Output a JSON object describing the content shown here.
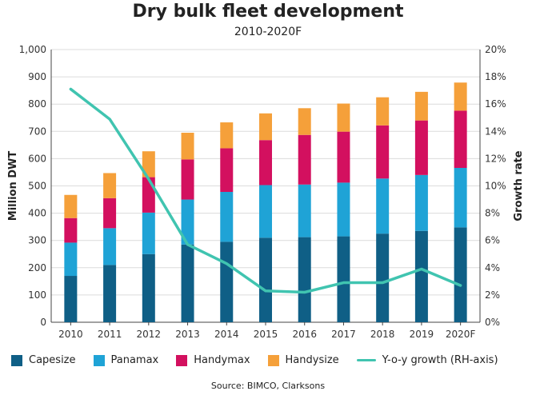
{
  "chart_data": {
    "type": "bar",
    "title": "Dry bulk fleet development",
    "subtitle": "2010-2020F",
    "ylabel": "Million DWT",
    "y2label": "Growth rate",
    "source": "Source: BIMCO, Clarksons",
    "stacked": true,
    "ylim": [
      0,
      1000
    ],
    "y2lim": [
      0,
      20
    ],
    "y_ticks": [
      "0",
      "100",
      "200",
      "300",
      "400",
      "500",
      "600",
      "700",
      "800",
      "900",
      "1,000"
    ],
    "y2_ticks": [
      "0%",
      "2%",
      "4%",
      "6%",
      "8%",
      "10%",
      "12%",
      "14%",
      "16%",
      "18%",
      "20%"
    ],
    "grid": "horizontal",
    "legend_position": "bottom",
    "categories": [
      "2010",
      "2011",
      "2012",
      "2013",
      "2014",
      "2015",
      "2016",
      "2017",
      "2018",
      "2019",
      "2020F"
    ],
    "series": [
      {
        "name": "Capesize",
        "color": "#0f5f86",
        "values": [
          170,
          210,
          250,
          285,
          295,
          310,
          312,
          315,
          325,
          335,
          348
        ]
      },
      {
        "name": "Panamax",
        "color": "#1fa3d6",
        "values": [
          122,
          135,
          152,
          165,
          183,
          193,
          193,
          197,
          202,
          205,
          218
        ]
      },
      {
        "name": "Handymax",
        "color": "#d3105f",
        "values": [
          90,
          110,
          130,
          147,
          160,
          165,
          182,
          187,
          195,
          200,
          210
        ]
      },
      {
        "name": "Handysize",
        "color": "#f5a03a",
        "values": [
          85,
          92,
          95,
          98,
          95,
          98,
          98,
          103,
          103,
          105,
          103
        ]
      }
    ],
    "line_series": {
      "name": "Y-o-y growth (RH-axis)",
      "color": "#40c4b0",
      "axis": "right",
      "values": [
        17.1,
        14.9,
        10.5,
        5.7,
        4.3,
        2.3,
        2.2,
        2.9,
        2.9,
        3.9,
        2.7
      ]
    }
  }
}
